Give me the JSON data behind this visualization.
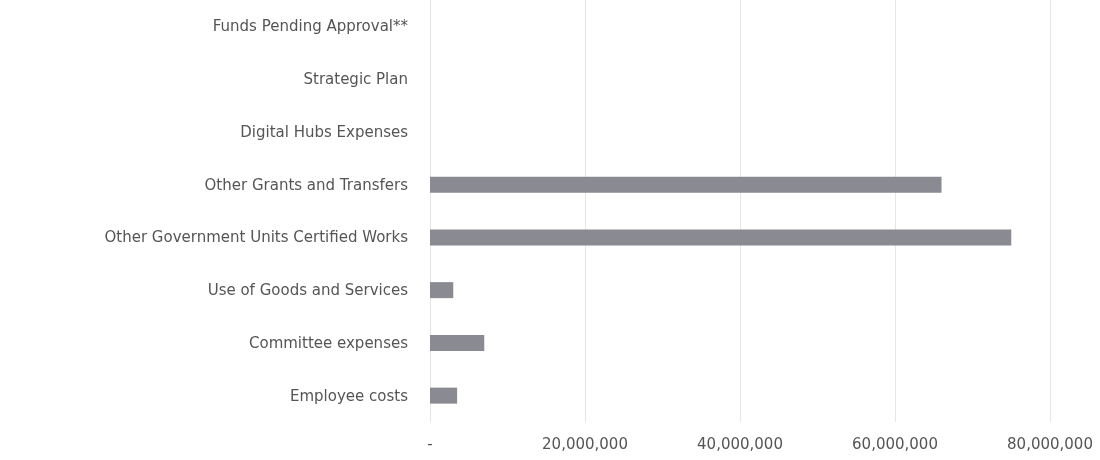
{
  "chart_data": {
    "type": "bar",
    "orientation": "horizontal",
    "categories": [
      "Funds Pending Approval**",
      "Strategic Plan",
      "Digital Hubs Expenses",
      "Other Grants and Transfers",
      "Other Government Units Certified Works",
      "Use of Goods and Services",
      "Committee expenses",
      "Employee costs"
    ],
    "values": [
      0,
      0,
      0,
      66000000,
      75000000,
      3000000,
      7000000,
      3500000
    ],
    "color": "#8a8a92",
    "xlim": [
      0,
      80000000
    ],
    "xticks": [
      {
        "value": 0,
        "label": "-"
      },
      {
        "value": 20000000,
        "label": "20,000,000"
      },
      {
        "value": 40000000,
        "label": "40,000,000"
      },
      {
        "value": 60000000,
        "label": "60,000,000"
      },
      {
        "value": 80000000,
        "label": "80,000,000"
      }
    ],
    "grid": "x"
  }
}
